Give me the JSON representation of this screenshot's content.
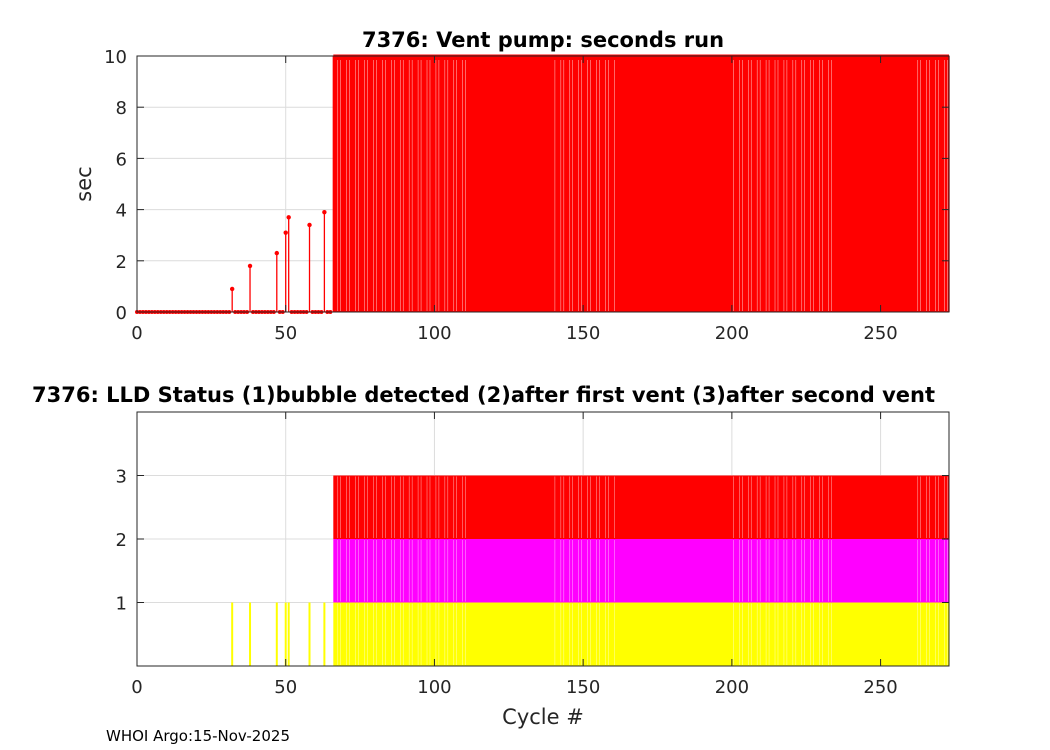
{
  "chart_data": [
    {
      "type": "stem",
      "title": "7376: Vent pump: seconds run",
      "xlabel": "",
      "ylabel": "sec",
      "xlim": [
        0,
        273
      ],
      "ylim": [
        0,
        10
      ],
      "xticks": [
        0,
        50,
        100,
        150,
        200,
        250
      ],
      "yticks": [
        0,
        2,
        4,
        6,
        8,
        10
      ],
      "grid": true,
      "color": "#ff0000",
      "series": [
        {
          "points": [
            [
              32,
              0.9
            ],
            [
              38,
              1.8
            ],
            [
              47,
              2.3
            ],
            [
              50,
              3.1
            ],
            [
              51,
              3.7
            ],
            [
              58,
              3.4
            ],
            [
              63,
              3.9
            ]
          ],
          "zero_range": [
            0,
            65
          ],
          "saturated_range": [
            66,
            273
          ],
          "saturated_value": 10
        }
      ]
    },
    {
      "type": "bar",
      "title": "7376: LLD Status   (1)bubble detected   (2)after first vent  (3)after second vent",
      "xlabel": "Cycle #",
      "ylabel": "",
      "xlim": [
        0,
        273
      ],
      "ylim": [
        0,
        4
      ],
      "xticks": [
        0,
        50,
        100,
        150,
        200,
        250
      ],
      "yticks": [
        1,
        2,
        3
      ],
      "grid": true,
      "series": [
        {
          "status": 1,
          "color": "#ffff00",
          "x_single": [
            32,
            38,
            47,
            50,
            51,
            58,
            63
          ],
          "x_range": [
            66,
            273
          ]
        },
        {
          "status": 2,
          "color": "#ff00ff",
          "x_range": [
            66,
            273
          ]
        },
        {
          "status": 3,
          "color": "#ff0000",
          "x_range": [
            66,
            273
          ]
        }
      ]
    }
  ],
  "footer": {
    "text": "WHOI Argo:15-Nov-2025"
  }
}
